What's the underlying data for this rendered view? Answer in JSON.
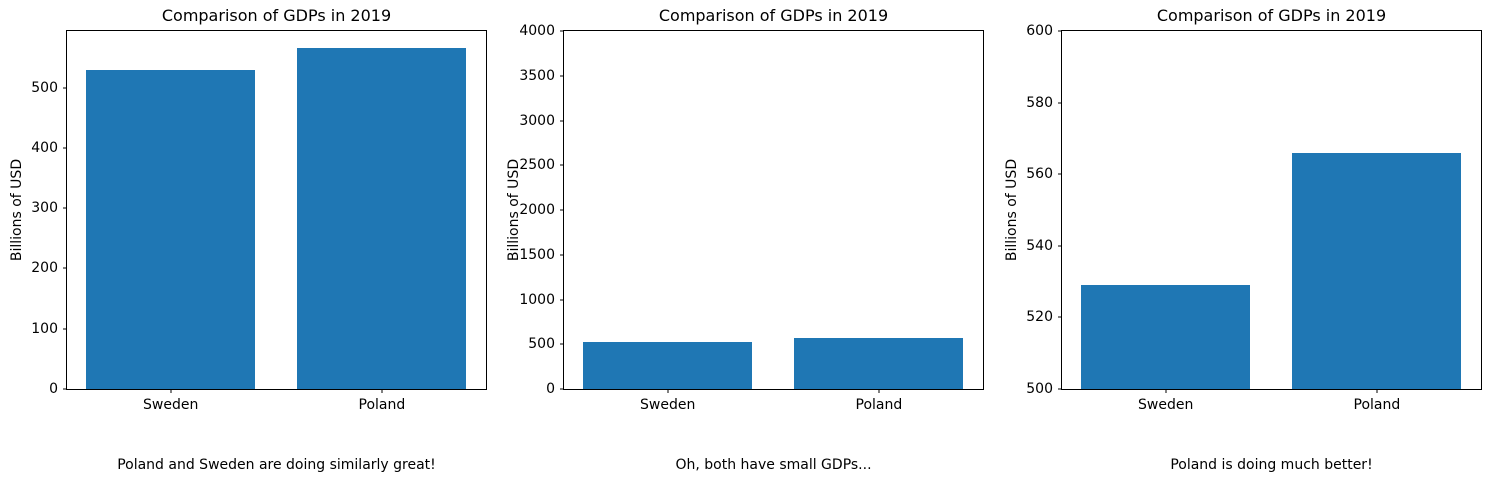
{
  "style": {
    "bar_color": "#1f77b4",
    "text_color": "#000000",
    "spine_color": "#000000",
    "background": "#ffffff"
  },
  "chart_data": [
    {
      "type": "bar",
      "title": "Comparison of GDPs in 2019",
      "xlabel": "",
      "ylabel": "Billions of USD",
      "categories": [
        "Sweden",
        "Poland"
      ],
      "values": [
        529,
        566
      ],
      "ylim": [
        0,
        594
      ],
      "yticks": [
        0,
        100,
        200,
        300,
        400,
        500
      ],
      "grid": false,
      "legend": "none",
      "caption": "Poland and Sweden are doing similarly great!"
    },
    {
      "type": "bar",
      "title": "Comparison of GDPs in 2019",
      "xlabel": "",
      "ylabel": "Billions of USD",
      "categories": [
        "Sweden",
        "Poland"
      ],
      "values": [
        529,
        566
      ],
      "ylim": [
        0,
        4000
      ],
      "yticks": [
        0,
        500,
        1000,
        1500,
        2000,
        2500,
        3000,
        3500,
        4000
      ],
      "grid": false,
      "legend": "none",
      "caption": "Oh, both have small GDPs..."
    },
    {
      "type": "bar",
      "title": "Comparison of GDPs in 2019",
      "xlabel": "",
      "ylabel": "Billions of USD",
      "categories": [
        "Sweden",
        "Poland"
      ],
      "values": [
        529,
        566
      ],
      "ylim": [
        500,
        600
      ],
      "yticks": [
        500,
        520,
        540,
        560,
        580,
        600
      ],
      "grid": false,
      "legend": "none",
      "caption": "Poland is doing much better!"
    }
  ]
}
